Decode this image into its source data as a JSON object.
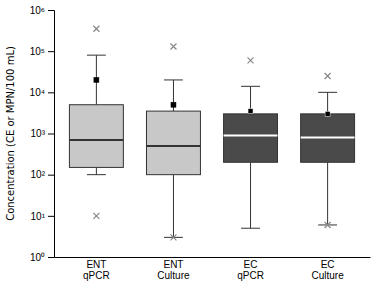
{
  "chart_data": {
    "type": "box",
    "ylabel": "Concentration (CE or MPN/100 mL)",
    "categories": [
      "ENT\nqPCR",
      "ENT\nCulture",
      "EC\nqPCR",
      "EC\nCulture"
    ],
    "boxes": [
      {
        "q1": 150,
        "median": 700,
        "q3": 5000,
        "whisker_low": 100,
        "whisker_high": 80000,
        "mean": 20000,
        "fliers_low": [
          10
        ],
        "fliers_high": [
          350000
        ]
      },
      {
        "q1": 100,
        "median": 500,
        "q3": 3500,
        "whisker_low": 3,
        "whisker_high": 20000,
        "mean": 5000,
        "fliers_low": [
          3
        ],
        "fliers_high": [
          130000
        ]
      },
      {
        "q1": 200,
        "median": 900,
        "q3": 3000,
        "whisker_low": 5,
        "whisker_high": 14000,
        "mean": 3500,
        "fliers_low": [],
        "fliers_high": [
          60000
        ]
      },
      {
        "q1": 200,
        "median": 800,
        "q3": 3000,
        "whisker_low": 6,
        "whisker_high": 10000,
        "mean": 3000,
        "fliers_low": [
          6
        ],
        "fliers_high": [
          25000
        ]
      }
    ],
    "colors": [
      "#c8c8c8",
      "#c8c8c8",
      "#4a4a4a",
      "#4a4a4a"
    ],
    "log": "y",
    "grid": false,
    "ylim": [
      1,
      1000000
    ],
    "yticks": [
      {
        "value": 1,
        "label": "10⁰"
      },
      {
        "value": 10,
        "label": "10¹"
      },
      {
        "value": 100,
        "label": "10²"
      },
      {
        "value": 1000,
        "label": "10³"
      },
      {
        "value": 10000,
        "label": "10⁴"
      },
      {
        "value": 100000,
        "label": "10⁵"
      },
      {
        "value": 1000000,
        "label": "10⁶"
      }
    ]
  }
}
